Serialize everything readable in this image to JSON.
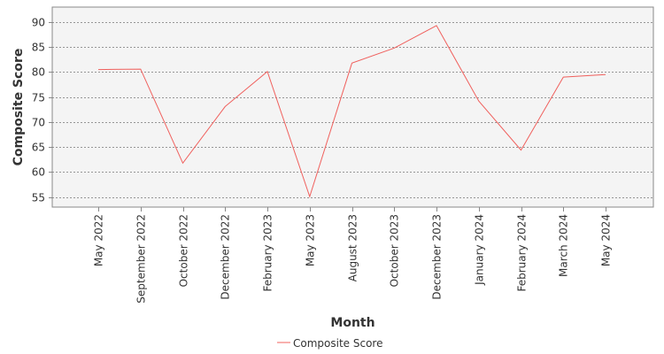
{
  "chart_data": {
    "type": "line",
    "title": "",
    "xlabel": "Month",
    "ylabel": "Composite Score",
    "categories": [
      "May 2022",
      "September 2022",
      "October 2022",
      "December 2022",
      "February 2023",
      "May 2023",
      "August 2023",
      "October 2023",
      "December 2023",
      "January 2024",
      "February 2024",
      "March 2024",
      "May 2024"
    ],
    "series": [
      {
        "name": "Composite Score",
        "color": "#f0605d",
        "values": [
          80.5,
          80.6,
          61.8,
          73.1,
          80.1,
          55.1,
          81.8,
          84.8,
          89.3,
          74.2,
          64.4,
          79.0,
          79.5
        ]
      }
    ],
    "y_ticks": [
      55,
      60,
      65,
      70,
      75,
      80,
      85,
      90
    ],
    "ylim": [
      53,
      93
    ],
    "grid": "horizontal dashed",
    "legend_position": "bottom-center",
    "plot_background": "#f4f4f4",
    "grid_color": "#777777"
  }
}
